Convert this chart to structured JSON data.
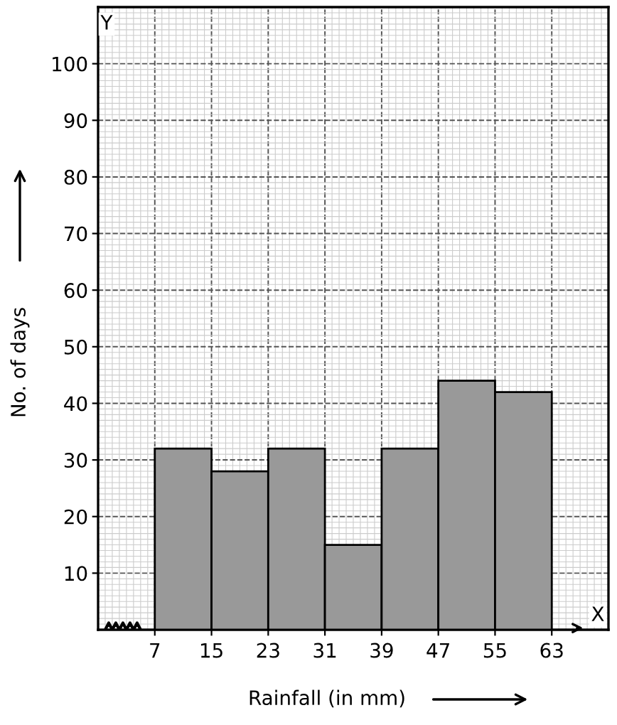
{
  "chart_data": {
    "type": "histogram",
    "bins": [
      7,
      15,
      23,
      31,
      39,
      47,
      55,
      63
    ],
    "values": [
      32,
      28,
      32,
      15,
      32,
      44,
      42
    ],
    "color": "#999999",
    "xlabel": "Rainfall (in mm)",
    "ylabel": "No. of days",
    "annotations": [
      "X",
      "Y"
    ],
    "xlim": [
      -1,
      71
    ],
    "ylim": [
      0,
      110
    ],
    "xticks": [
      7,
      15,
      23,
      31,
      39,
      47,
      55,
      63
    ],
    "yticks": [
      10,
      20,
      30,
      40,
      50,
      60,
      70,
      80,
      90,
      100
    ],
    "grid": true
  }
}
